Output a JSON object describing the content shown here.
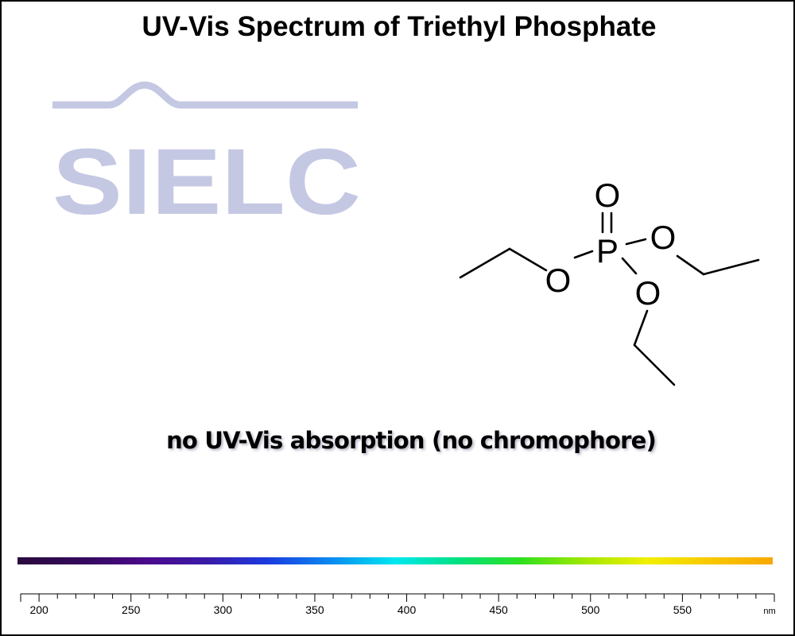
{
  "title": "UV-Vis Spectrum of Triethyl Phosphate",
  "logo": {
    "text": "SIELC",
    "color": "#c5c8e3"
  },
  "note": "no UV-Vis absorption (no chromophore)",
  "molecule": {
    "atoms": {
      "phosphorus": "P",
      "oxygen_double": "O",
      "oxygen_left": "O",
      "oxygen_right": "O",
      "oxygen_bottom": "O"
    }
  },
  "colors": {
    "spectrum_gradient": [
      "#2a0a3c",
      "#33095a",
      "#4b0a8a",
      "#3a1aa8",
      "#1a3ce0",
      "#0a8cf0",
      "#00e8f0",
      "#00e080",
      "#30e020",
      "#a0e800",
      "#f0f000",
      "#f8c800",
      "#f8a800"
    ]
  },
  "chart_data": {
    "type": "line",
    "title": "UV-Vis Spectrum of Triethyl Phosphate",
    "xlabel": "nm",
    "ylabel": "",
    "xlim": [
      190,
      600
    ],
    "x_ticks": [
      200,
      250,
      300,
      350,
      400,
      450,
      500,
      550
    ],
    "series": [],
    "annotations": [
      "no UV-Vis absorption (no chromophore)"
    ]
  }
}
